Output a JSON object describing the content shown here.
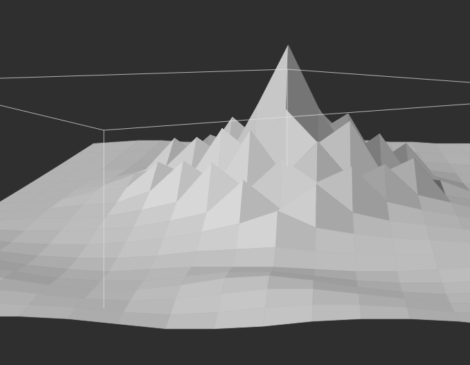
{
  "chart_data": {
    "type": "surface",
    "color": "#d8d8d8",
    "grid": false,
    "tick_labels": false,
    "z": [
      [
        0.8,
        0.9,
        1.0,
        1.0,
        0.9,
        0.9,
        1.0,
        1.1,
        1.2,
        1.2,
        1.1,
        1.0,
        1.0,
        0.9,
        0.9,
        0.8,
        0.8,
        0.8
      ],
      [
        0.9,
        1.0,
        1.1,
        1.1,
        1.0,
        1.1,
        1.2,
        1.5,
        1.8,
        1.9,
        1.6,
        1.3,
        1.1,
        1.0,
        1.0,
        0.9,
        0.9,
        0.8
      ],
      [
        1.0,
        1.1,
        1.2,
        1.2,
        1.2,
        1.4,
        1.8,
        2.6,
        3.2,
        4.0,
        3.0,
        2.2,
        1.6,
        1.3,
        1.1,
        1.0,
        0.9,
        0.9
      ],
      [
        1.1,
        1.2,
        1.3,
        1.4,
        1.5,
        2.0,
        3.4,
        2.8,
        4.5,
        5.5,
        4.8,
        3.2,
        2.6,
        1.6,
        1.3,
        1.1,
        1.0,
        0.9
      ],
      [
        1.2,
        1.3,
        1.4,
        1.6,
        2.0,
        3.8,
        2.6,
        5.0,
        3.6,
        7.0,
        4.2,
        5.2,
        2.4,
        3.5,
        1.6,
        1.2,
        1.1,
        1.0
      ],
      [
        1.3,
        1.4,
        1.5,
        1.8,
        2.4,
        2.8,
        4.4,
        3.2,
        6.2,
        9.5,
        6.0,
        3.4,
        4.6,
        2.2,
        2.0,
        1.4,
        1.2,
        1.0
      ],
      [
        1.4,
        1.5,
        1.6,
        2.0,
        2.2,
        3.6,
        2.8,
        5.4,
        4.0,
        6.4,
        4.6,
        5.8,
        3.0,
        3.8,
        1.8,
        1.5,
        1.2,
        1.1
      ],
      [
        1.5,
        1.6,
        1.7,
        1.9,
        2.0,
        2.6,
        4.2,
        3.0,
        5.8,
        3.4,
        5.2,
        3.2,
        4.0,
        2.4,
        2.0,
        1.6,
        1.3,
        1.2
      ],
      [
        1.6,
        1.7,
        1.8,
        1.8,
        1.9,
        2.2,
        2.6,
        4.6,
        3.2,
        4.8,
        3.6,
        4.4,
        2.6,
        2.2,
        1.9,
        1.6,
        1.4,
        1.3
      ],
      [
        1.8,
        1.8,
        1.7,
        1.7,
        1.8,
        1.9,
        2.2,
        2.6,
        4.2,
        2.8,
        4.0,
        2.6,
        2.2,
        2.0,
        1.8,
        1.7,
        1.5,
        1.4
      ],
      [
        2.0,
        1.9,
        1.7,
        1.6,
        1.6,
        1.7,
        1.9,
        2.2,
        2.6,
        3.2,
        2.4,
        2.1,
        1.9,
        1.8,
        1.7,
        1.7,
        1.6,
        1.5
      ],
      [
        2.3,
        2.1,
        1.8,
        1.6,
        1.5,
        1.5,
        1.6,
        1.8,
        1.9,
        2.0,
        1.8,
        1.7,
        1.6,
        1.6,
        1.6,
        1.7,
        1.7,
        1.6
      ],
      [
        2.5,
        2.3,
        2.0,
        1.7,
        1.5,
        1.4,
        1.5,
        1.6,
        1.6,
        1.6,
        1.5,
        1.4,
        1.4,
        1.5,
        1.6,
        1.7,
        1.8,
        1.7
      ],
      [
        2.4,
        2.4,
        2.2,
        1.9,
        1.6,
        1.5,
        1.5,
        1.7,
        1.9,
        1.9,
        1.7,
        1.5,
        1.4,
        1.4,
        1.5,
        1.7,
        1.8,
        1.8
      ],
      [
        2.2,
        2.3,
        2.3,
        2.1,
        1.8,
        1.6,
        1.6,
        1.8,
        2.1,
        2.2,
        2.0,
        1.7,
        1.5,
        1.4,
        1.5,
        1.6,
        1.7,
        1.7
      ],
      [
        2.0,
        2.1,
        2.2,
        2.1,
        1.9,
        1.7,
        1.6,
        1.7,
        1.9,
        2.1,
        2.1,
        1.9,
        1.7,
        1.5,
        1.5,
        1.6,
        1.6,
        1.6
      ],
      [
        1.8,
        1.9,
        2.0,
        2.0,
        1.9,
        1.8,
        1.6,
        1.5,
        1.6,
        1.8,
        1.9,
        1.9,
        1.8,
        1.6,
        1.5,
        1.5,
        1.5,
        1.5
      ],
      [
        1.6,
        1.7,
        1.8,
        1.9,
        1.9,
        1.8,
        1.6,
        1.4,
        1.4,
        1.5,
        1.7,
        1.8,
        1.8,
        1.7,
        1.5,
        1.4,
        1.4,
        1.4
      ]
    ]
  }
}
